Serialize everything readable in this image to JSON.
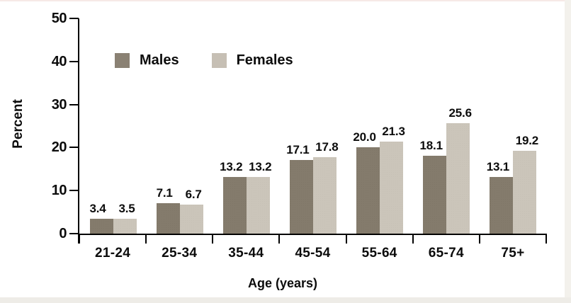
{
  "chart_data": {
    "type": "bar",
    "title": "",
    "categories": [
      "21-24",
      "25-34",
      "35-44",
      "45-54",
      "55-64",
      "65-74",
      "75+"
    ],
    "series": [
      {
        "name": "Males",
        "color": "#847b6c",
        "values": [
          3.4,
          7.1,
          13.2,
          17.1,
          20.0,
          18.1,
          13.1
        ]
      },
      {
        "name": "Females",
        "color": "#cbc5ba",
        "values": [
          3.5,
          6.7,
          13.2,
          17.8,
          21.3,
          25.6,
          19.2
        ]
      }
    ],
    "xlabel": "Age (years)",
    "ylabel": "Percent",
    "ylim": [
      0,
      50
    ],
    "yticks": [
      0,
      10,
      20,
      30,
      40,
      50
    ],
    "grid": false,
    "legend_position": "top-left-inside",
    "value_labels": true,
    "value_label_format": "one-decimal"
  },
  "colors": {
    "axis": "#000000",
    "text": "#0c0c0c",
    "legend_males_swatch": "#8a8173",
    "legend_females_swatch": "#c6bfb4",
    "frame_top_edge": "#f6e9e6",
    "frame_bottom_edge": "#eeece7",
    "frame_right_edge": "#f3f1ec"
  }
}
